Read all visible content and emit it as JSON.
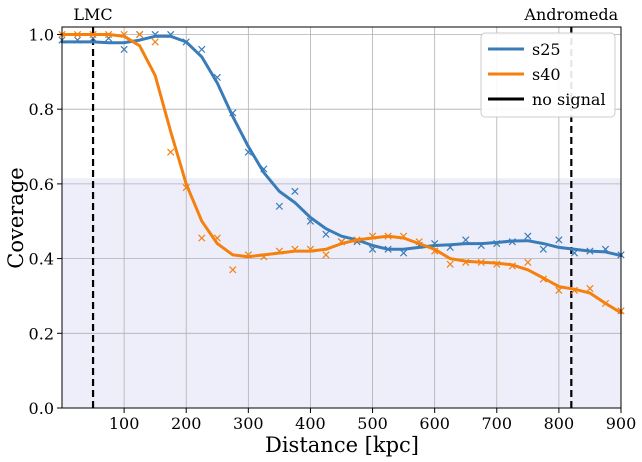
{
  "chart_data": {
    "type": "line",
    "xlabel": "Distance [kpc]",
    "ylabel": "Coverage",
    "xlim": [
      0,
      900
    ],
    "ylim": [
      0.0,
      1.02
    ],
    "xticks": [
      100,
      200,
      300,
      400,
      500,
      600,
      700,
      800,
      900
    ],
    "xtick_labels": [
      "100",
      "200",
      "300",
      "400",
      "500",
      "600",
      "700",
      "800",
      "900"
    ],
    "yticks": [
      0.0,
      0.2,
      0.4,
      0.6,
      0.8,
      1.0
    ],
    "ytick_labels": [
      "0.0",
      "0.2",
      "0.4",
      "0.6",
      "0.8",
      "1.0"
    ],
    "grid": true,
    "legend_position": "top-right",
    "shaded_band": {
      "y_from": 0.0,
      "y_to": 0.615,
      "color": "#eeeefb"
    },
    "vlines": [
      {
        "x": 50,
        "label": "LMC"
      },
      {
        "x": 820,
        "label": "Andromeda"
      }
    ],
    "legend": [
      "s25",
      "s40",
      "no signal"
    ],
    "series": [
      {
        "name": "s25",
        "color": "#3a7cb8",
        "curve_x": [
          0,
          25,
          50,
          75,
          100,
          125,
          150,
          175,
          200,
          225,
          250,
          275,
          300,
          325,
          350,
          375,
          400,
          425,
          450,
          475,
          500,
          525,
          550,
          575,
          600,
          625,
          650,
          675,
          700,
          725,
          750,
          775,
          800,
          825,
          850,
          875,
          900
        ],
        "curve_y": [
          0.98,
          0.98,
          0.98,
          0.978,
          0.978,
          0.985,
          0.995,
          0.995,
          0.98,
          0.94,
          0.87,
          0.78,
          0.7,
          0.63,
          0.58,
          0.55,
          0.51,
          0.48,
          0.46,
          0.45,
          0.435,
          0.425,
          0.425,
          0.43,
          0.435,
          0.437,
          0.44,
          0.44,
          0.443,
          0.447,
          0.448,
          0.44,
          0.43,
          0.425,
          0.42,
          0.418,
          0.408
        ],
        "marker_x": [
          0,
          25,
          50,
          75,
          100,
          125,
          150,
          175,
          200,
          225,
          250,
          275,
          300,
          325,
          350,
          375,
          400,
          425,
          450,
          475,
          500,
          525,
          550,
          575,
          600,
          625,
          650,
          675,
          700,
          725,
          750,
          775,
          800,
          825,
          850,
          875,
          900
        ],
        "marker_y": [
          0.985,
          0.985,
          0.99,
          0.99,
          0.96,
          1.0,
          1.0,
          1.0,
          0.98,
          0.96,
          0.885,
          0.79,
          0.685,
          0.64,
          0.54,
          0.58,
          0.5,
          0.465,
          0.445,
          0.445,
          0.425,
          0.425,
          0.415,
          0.435,
          0.44,
          0.43,
          0.45,
          0.435,
          0.44,
          0.445,
          0.46,
          0.425,
          0.45,
          0.415,
          0.42,
          0.425,
          0.41
        ]
      },
      {
        "name": "s40",
        "color": "#f5800e",
        "curve_x": [
          0,
          25,
          50,
          75,
          100,
          125,
          150,
          175,
          200,
          225,
          250,
          275,
          300,
          325,
          350,
          375,
          400,
          425,
          450,
          475,
          500,
          525,
          550,
          575,
          600,
          625,
          650,
          675,
          700,
          725,
          750,
          775,
          800,
          825,
          850,
          875,
          900
        ],
        "curve_y": [
          1.0,
          1.0,
          1.0,
          1.0,
          0.995,
          0.97,
          0.89,
          0.74,
          0.6,
          0.5,
          0.44,
          0.41,
          0.405,
          0.41,
          0.415,
          0.42,
          0.42,
          0.425,
          0.44,
          0.45,
          0.455,
          0.46,
          0.455,
          0.44,
          0.425,
          0.4,
          0.393,
          0.39,
          0.388,
          0.383,
          0.37,
          0.348,
          0.325,
          0.318,
          0.308,
          0.28,
          0.255
        ],
        "marker_x": [
          0,
          25,
          50,
          75,
          100,
          125,
          150,
          175,
          200,
          225,
          250,
          275,
          300,
          325,
          350,
          375,
          400,
          425,
          450,
          475,
          500,
          525,
          550,
          575,
          600,
          625,
          650,
          675,
          700,
          725,
          750,
          775,
          800,
          825,
          850,
          875,
          900
        ],
        "marker_y": [
          1.0,
          1.0,
          1.0,
          1.0,
          1.0,
          1.0,
          0.98,
          0.685,
          0.59,
          0.455,
          0.455,
          0.37,
          0.41,
          0.405,
          0.42,
          0.425,
          0.425,
          0.41,
          0.445,
          0.45,
          0.46,
          0.46,
          0.46,
          0.445,
          0.42,
          0.385,
          0.39,
          0.39,
          0.385,
          0.38,
          0.39,
          0.345,
          0.315,
          0.315,
          0.32,
          0.28,
          0.26
        ]
      },
      {
        "name": "no signal",
        "color": "#000000",
        "style": "dashed"
      }
    ]
  }
}
